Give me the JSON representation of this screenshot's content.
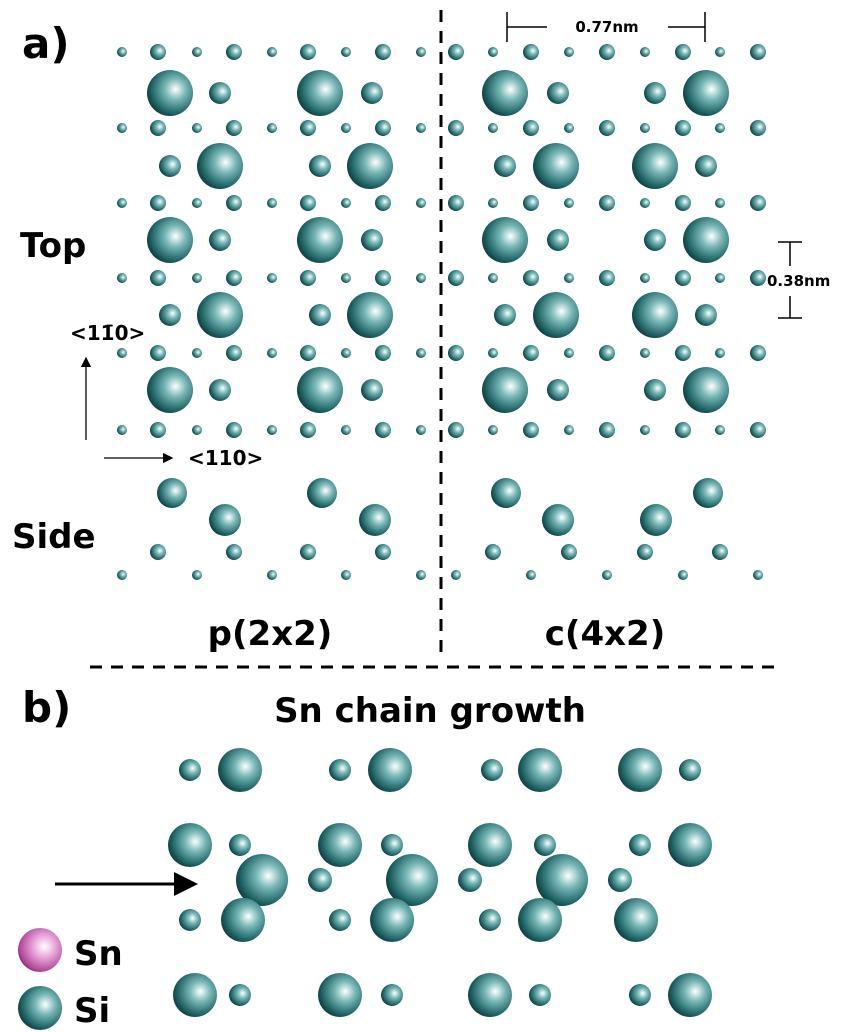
{
  "panel_a": {
    "label": "a)",
    "spacing_horizontal": "0.77nm",
    "spacing_vertical": "0.38nm",
    "view_top": "Top",
    "view_side": "Side",
    "direction_vertical": "<11̄0>",
    "direction_horizontal": "<110>",
    "left_structure": "p(2x2)",
    "right_structure": "c(4x2)"
  },
  "panel_b": {
    "label": "b)",
    "title": "Sn chain growth"
  },
  "legend": {
    "items": [
      {
        "label": "Sn"
      },
      {
        "label": "Si"
      }
    ]
  }
}
